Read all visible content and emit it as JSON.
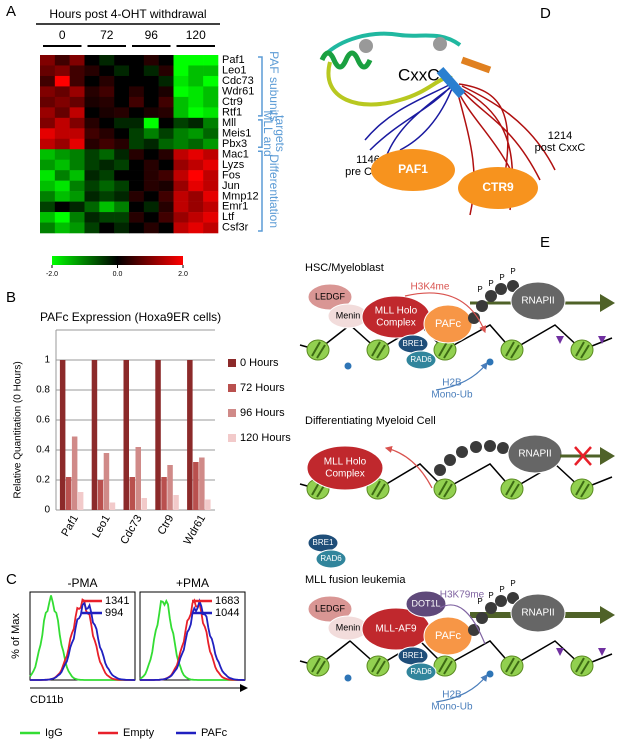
{
  "chart_data": [
    {
      "type": "heatmap",
      "title": "Hours post 4-OHT withdrawal",
      "column_groups": [
        "0",
        "72",
        "96",
        "120"
      ],
      "rows": [
        "Paf1",
        "Leo1",
        "Cdc73",
        "Wdr61",
        "Ctr9",
        "Rtf1",
        "Mll",
        "Meis1",
        "Pbx3",
        "Mac1",
        "Lyzs",
        "Fos",
        "Jun",
        "Mmp12",
        "Emr1",
        "Ltf",
        "Csf3r"
      ],
      "values": [
        [
          1,
          0.5,
          1,
          0,
          -0.3,
          0,
          0,
          0.3,
          0,
          -2,
          -2,
          -2
        ],
        [
          0.8,
          1,
          0.5,
          0.3,
          0,
          -0.3,
          0,
          -0.3,
          0.3,
          -2,
          -1.5,
          -1.5
        ],
        [
          0.5,
          2,
          0.5,
          0,
          0.3,
          0,
          0,
          0,
          -0.3,
          -1.8,
          -1.5,
          -2
        ],
        [
          1,
          0.8,
          1.2,
          0.3,
          0.5,
          0,
          0.3,
          0,
          0.2,
          -2,
          -1.8,
          -1.5
        ],
        [
          0.8,
          1,
          0.8,
          0.2,
          0.3,
          0,
          0.5,
          0,
          0.5,
          -1.5,
          -1.8,
          -1.5
        ],
        [
          1.2,
          0.8,
          1.5,
          0,
          0.2,
          0.3,
          0,
          0.2,
          0.3,
          -1.5,
          -2,
          -1.8
        ],
        [
          1,
          1.5,
          1,
          0.3,
          0,
          -0.3,
          -0.3,
          -2,
          0,
          -0.5,
          -0.3,
          -1
        ],
        [
          1.8,
          1.5,
          1.5,
          0.5,
          0.3,
          0,
          -0.5,
          -1,
          -0.5,
          -1,
          -1.2,
          -0.8
        ],
        [
          1.5,
          1.2,
          1.8,
          0.3,
          0.5,
          0.3,
          -0.5,
          -0.3,
          -0.8,
          -1,
          -0.8,
          -1.2
        ],
        [
          -1.5,
          -1.2,
          -1,
          -0.5,
          -0.8,
          -0.3,
          0.3,
          0,
          0.3,
          1.5,
          1.8,
          1.5
        ],
        [
          -1.2,
          -1.5,
          -1,
          -0.5,
          -0.3,
          -0.5,
          0,
          0.3,
          0,
          1.2,
          1.5,
          1.8
        ],
        [
          -1.8,
          -1,
          -1.5,
          -0.3,
          -0.5,
          0,
          0,
          0.3,
          0.5,
          1.5,
          2,
          1.5
        ],
        [
          -1.5,
          -1.8,
          -1,
          -0.5,
          -0.8,
          -0.5,
          0,
          0.3,
          0.2,
          1.2,
          1.8,
          1.5
        ],
        [
          -1,
          -1.5,
          -1.2,
          -0.3,
          -0.5,
          -0.3,
          0.3,
          0,
          0.5,
          1.5,
          1.2,
          1.8
        ],
        [
          -0.5,
          0,
          -0.3,
          -0.8,
          -1.5,
          -1,
          0,
          -0.3,
          0.3,
          1.5,
          1.2,
          1.5
        ],
        [
          -1.5,
          -2,
          -1,
          -0.3,
          -0.5,
          -0.5,
          0.3,
          0,
          0.5,
          1.2,
          1.5,
          1.8
        ],
        [
          -1,
          -1.5,
          -1.2,
          -0.5,
          0,
          -0.3,
          0,
          0.3,
          0,
          1.5,
          1.8,
          1.5
        ]
      ],
      "row_groups": [
        [
          "PAF subunits"
        ],
        [
          "MLL and",
          "targets"
        ],
        [
          "Differentiation"
        ]
      ],
      "zlim": [
        -2,
        2
      ],
      "zticks": [
        {
          "value": -2,
          "label": "-2.0"
        },
        {
          "value": 0,
          "label": "0.0"
        },
        {
          "value": 2,
          "label": "2.0"
        }
      ],
      "low_color": "#00ff00",
      "mid_color": "#000000",
      "high_color": "#ff0000"
    },
    {
      "type": "bar",
      "title": "PAFc Expression (Hoxa9ER cells)",
      "y_label": "Relative Quantitation (0 Hours)",
      "categories": [
        "Paf1",
        "Leo1",
        "Cdc73",
        "Ctr9",
        "Wdr61"
      ],
      "series": [
        {
          "name": "0 Hours",
          "color": "#8c2a2a",
          "values": [
            1,
            1,
            1,
            1,
            1
          ]
        },
        {
          "name": "72 Hours",
          "color": "#b9504e",
          "values": [
            0.22,
            0.2,
            0.22,
            0.22,
            0.32
          ]
        },
        {
          "name": "96 Hours",
          "color": "#d08a88",
          "values": [
            0.49,
            0.38,
            0.42,
            0.3,
            0.35
          ]
        },
        {
          "name": "120 Hours",
          "color": "#f2caca",
          "values": [
            0.12,
            0.05,
            0.08,
            0.1,
            0.07
          ]
        }
      ],
      "ylim": [
        0,
        1.2
      ],
      "yticks": [
        0,
        0.2,
        0.4,
        0.6,
        0.8,
        1
      ],
      "grid": true,
      "legend": "right"
    }
  ],
  "figure": {
    "panel_labels": {
      "A": "A",
      "B": "B",
      "C": "C",
      "D": "D",
      "E": "E"
    },
    "flow": {
      "conditions": [
        {
          "title": "-PMA",
          "values": [
            {
              "value": 1341,
              "color": "#e8202a"
            },
            {
              "value": 994,
              "color": "#2020c0"
            }
          ]
        },
        {
          "title": "+PMA",
          "values": [
            {
              "value": 1683,
              "color": "#e8202a"
            },
            {
              "value": 1044,
              "color": "#2020c0"
            }
          ]
        }
      ],
      "y_label": "% of Max",
      "x_label": "CD11b",
      "legend": [
        {
          "name": "IgG",
          "color": "#33dd33"
        },
        {
          "name": "Empty",
          "color": "#e8202a"
        },
        {
          "name": "PAFc",
          "color": "#2020c0"
        }
      ]
    },
    "structure": {
      "domain": "CxxC",
      "n_term": [
        "1146",
        "pre CxxC"
      ],
      "c_term": [
        "1214",
        "post CxxC"
      ],
      "proteins": [
        "PAF1",
        "CTR9"
      ]
    },
    "states": [
      {
        "title": "HSC/Myeloblast",
        "ledgf": "LEDGF",
        "menin": "Menin",
        "mll": [
          "MLL Holo",
          "Complex"
        ],
        "pafc": "PAFc",
        "rnapii": "RNAPII",
        "mark": "H3K4me",
        "phospho": [
          "P",
          "P",
          "P",
          "P"
        ],
        "bre1": "BRE1",
        "rad6": "RAD6",
        "ub": [
          "H2B",
          "Mono-Ub"
        ]
      },
      {
        "title": "Differentiating Myeloid Cell",
        "mll": [
          "MLL Holo",
          "Complex"
        ],
        "rnapii": "RNAPII",
        "bre1": "BRE1",
        "rad6": "RAD6"
      },
      {
        "title": "MLL fusion leukemia",
        "ledgf": "LEDGF",
        "menin": "Menin",
        "mll": [
          "MLL-AF9"
        ],
        "dot1l": "DOT1L",
        "pafc": "PAFc",
        "rnapii": "RNAPII",
        "mark": "H3K79me",
        "phospho": [
          "P",
          "P",
          "P",
          "P"
        ],
        "bre1": "BRE1",
        "rad6": "RAD6",
        "ub": [
          "H2B",
          "Mono-Ub"
        ]
      }
    ]
  }
}
